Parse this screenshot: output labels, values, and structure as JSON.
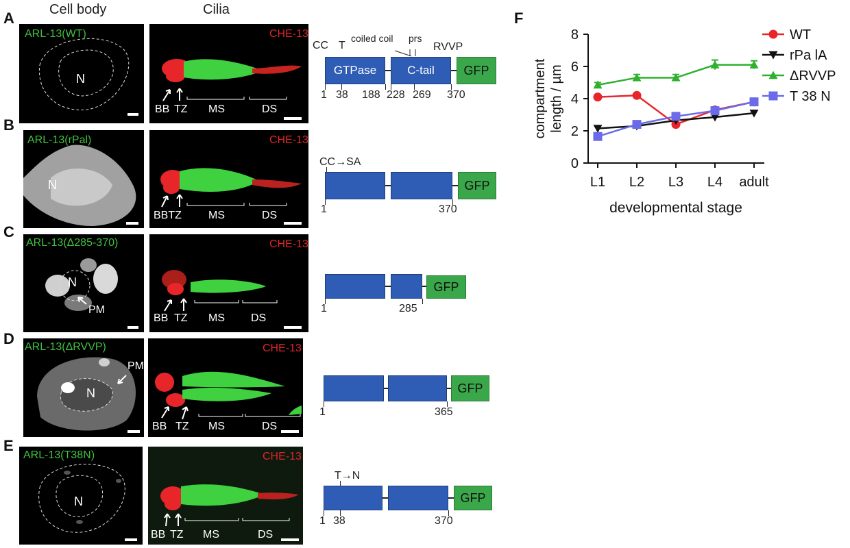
{
  "headers": {
    "cell_body": "Cell body",
    "cilia": "Cilia"
  },
  "panels": [
    {
      "letter": "A",
      "construct": "ARL-13(WT)",
      "che": "CHE-13",
      "nucleus": "N",
      "labels": {
        "bb": "BB",
        "tz": "TZ",
        "ms": "MS",
        "ds": "DS"
      },
      "domains": {
        "gtpase": "GTPase",
        "ctail": "C-tail",
        "gfp": "GFP"
      },
      "annotations": {
        "cc": "CC",
        "t": "T",
        "coiled_coil": "coiled coil",
        "prs": "prs",
        "rvvp": "RVVP"
      },
      "numbers": [
        "1",
        "38",
        "188",
        "228",
        "269",
        "370"
      ]
    },
    {
      "letter": "B",
      "construct": "ARL-13(rPal)",
      "che": "CHE-13",
      "nucleus": "N",
      "labels": {
        "bbtz": "BBTZ",
        "ms": "MS",
        "ds": "DS"
      },
      "domains": {
        "gfp": "GFP"
      },
      "annotations": {
        "mutation": "CC→SA"
      },
      "numbers": [
        "1",
        "370"
      ]
    },
    {
      "letter": "C",
      "construct": "ARL-13(Δ285-370)",
      "che": "CHE-13",
      "nucleus": "N",
      "pm": "PM",
      "labels": {
        "bb": "BB",
        "tz": "TZ",
        "ms": "MS",
        "ds": "DS"
      },
      "domains": {
        "gfp": "GFP"
      },
      "numbers": [
        "1",
        "285"
      ]
    },
    {
      "letter": "D",
      "construct": "ARL-13(ΔRVVP)",
      "che": "CHE-13",
      "nucleus": "N",
      "pm": "PM",
      "labels": {
        "bb": "BB",
        "tz": "TZ",
        "ms": "MS",
        "ds": "DS"
      },
      "domains": {
        "gfp": "GFP"
      },
      "numbers": [
        "1",
        "365"
      ]
    },
    {
      "letter": "E",
      "construct": "ARL-13(T38N)",
      "che": "CHE-13",
      "nucleus": "N",
      "labels": {
        "bb": "BB",
        "tz": "TZ",
        "ms": "MS",
        "ds": "DS"
      },
      "domains": {
        "gfp": "GFP"
      },
      "annotations": {
        "mutation": "T→N"
      },
      "numbers": [
        "1",
        "38",
        "370"
      ]
    }
  ],
  "panel_f": {
    "letter": "F"
  },
  "chart_data": {
    "type": "line",
    "xlabel": "developmental stage",
    "ylabel": "compartment length / µm",
    "categories": [
      "L1",
      "L2",
      "L3",
      "L4",
      "adult"
    ],
    "ylim": [
      0,
      8
    ],
    "yticks": [
      "0",
      "2",
      "4",
      "6",
      "8"
    ],
    "legend_position": "right",
    "series": [
      {
        "name": "WT",
        "color": "#e8262a",
        "marker": "circle",
        "values": [
          4.1,
          4.2,
          2.4,
          3.3,
          3.8
        ],
        "errors": [
          0,
          0,
          0,
          0,
          0
        ]
      },
      {
        "name": "rPa lA",
        "color": "#111111",
        "marker": "triangle-down",
        "values": [
          2.15,
          2.3,
          2.65,
          2.85,
          3.1
        ],
        "errors": [
          0,
          0,
          0,
          0,
          0
        ]
      },
      {
        "name": "ΔRVVP",
        "color": "#2fb12f",
        "marker": "triangle-up",
        "values": [
          4.85,
          5.3,
          5.3,
          6.1,
          6.1
        ],
        "errors": [
          0.15,
          0.2,
          0.2,
          0.3,
          0.25
        ]
      },
      {
        "name": "T 38 N",
        "color": "#6b6bea",
        "marker": "square",
        "values": [
          1.65,
          2.4,
          2.9,
          3.25,
          3.8
        ],
        "errors": [
          0,
          0,
          0,
          0,
          0
        ]
      }
    ]
  }
}
